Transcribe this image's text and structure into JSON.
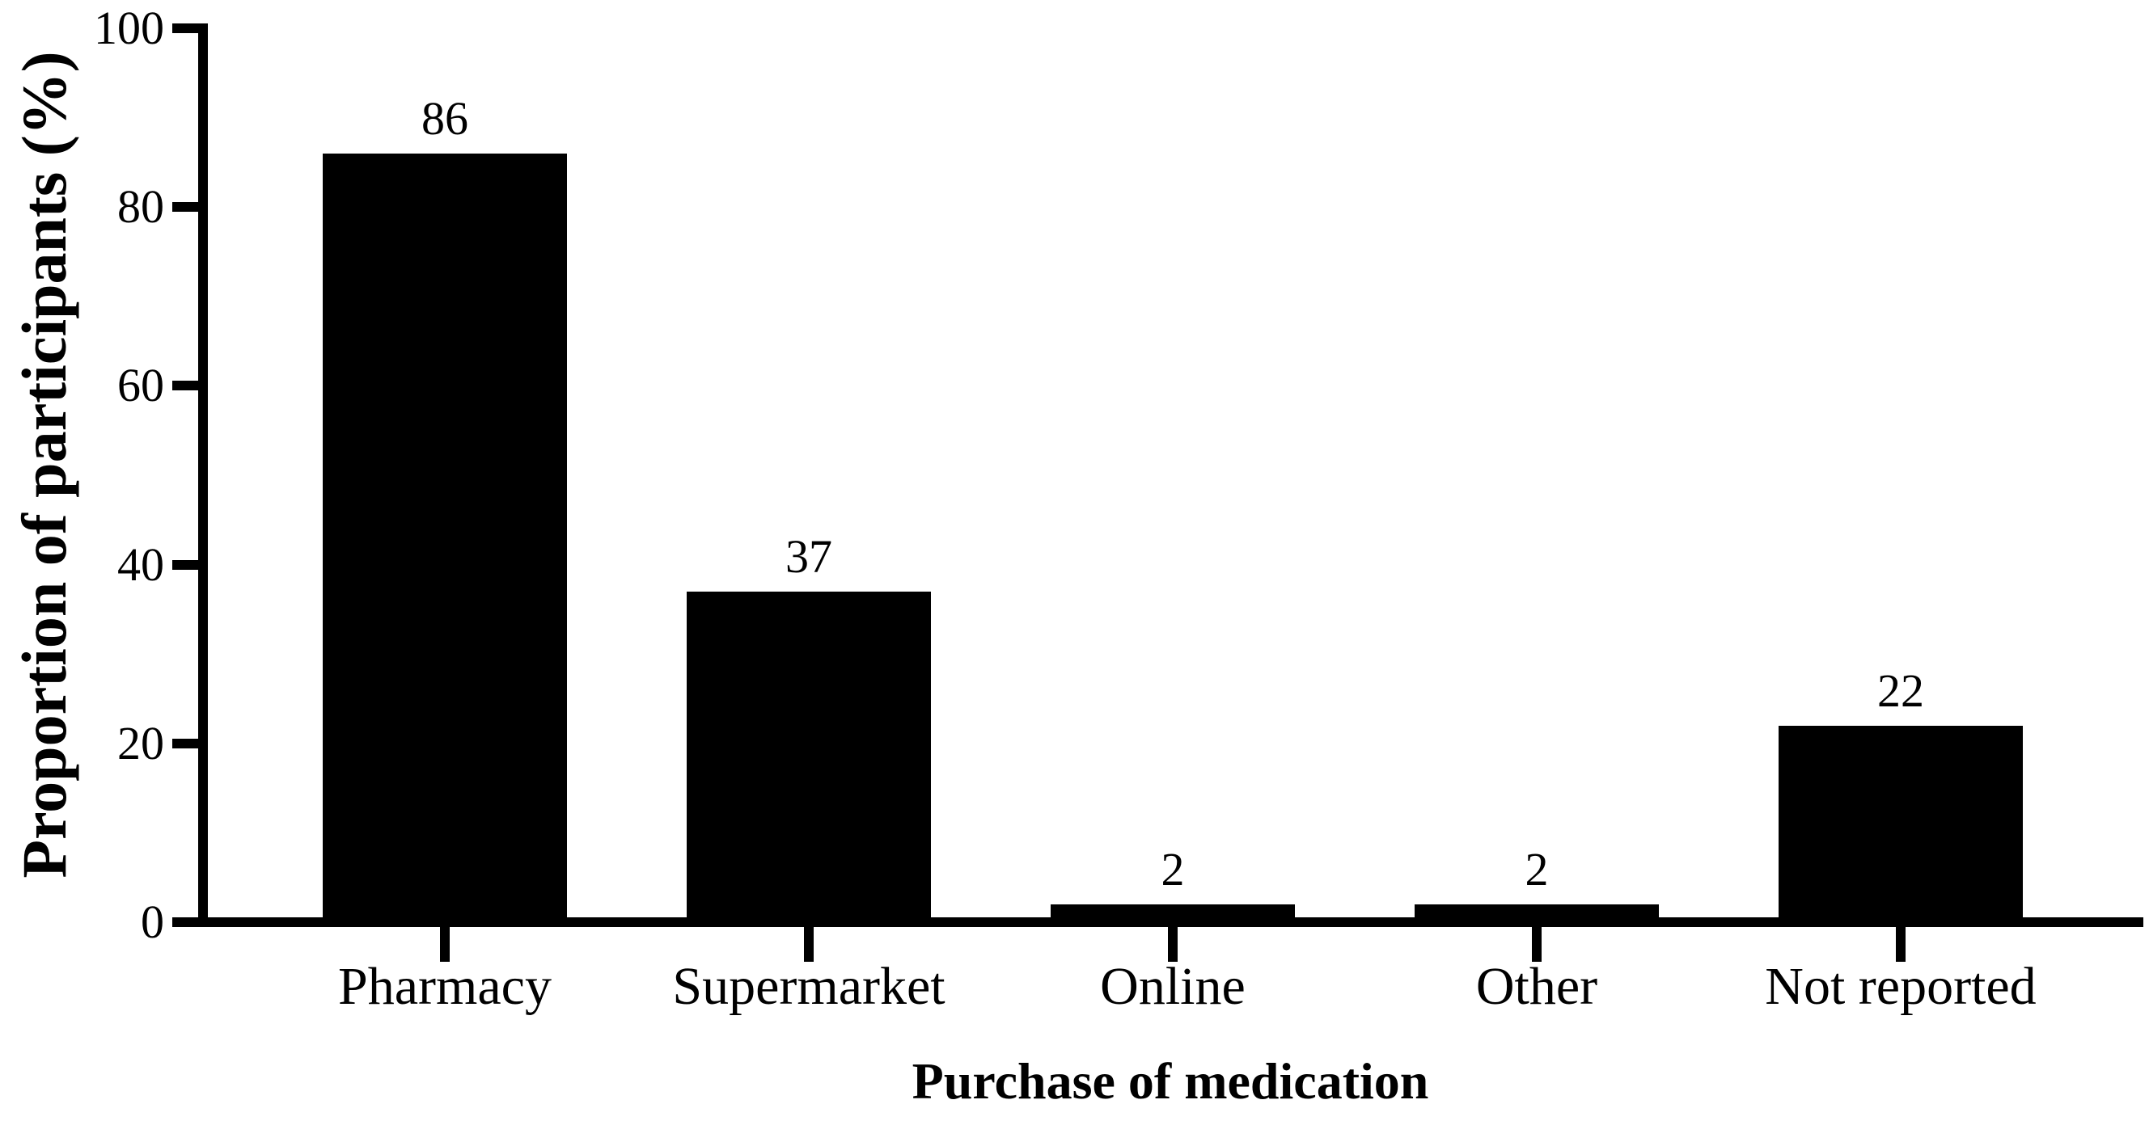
{
  "figure_background": "#ffffff",
  "chart_data": {
    "type": "bar",
    "title": "",
    "categories": [
      "Pharmacy",
      "Supermarket",
      "Online",
      "Other",
      "Not reported"
    ],
    "values": [
      86,
      37,
      2,
      2,
      22
    ],
    "bar_value_labels": [
      "86",
      "37",
      "2",
      "2",
      "22"
    ],
    "series_count": 1,
    "xlabel": "Purchase of medication",
    "ylabel": "Proportion of participants (%)",
    "ylim": [
      0,
      100
    ],
    "yticks": [
      0,
      20,
      40,
      60,
      80,
      100
    ],
    "ytick_labels": [
      "0",
      "20",
      "40",
      "60",
      "80",
      "100"
    ],
    "grid": false,
    "legend": "none",
    "bar_color": "#000000",
    "axis_color": "#000000",
    "text_color": "#000000"
  }
}
